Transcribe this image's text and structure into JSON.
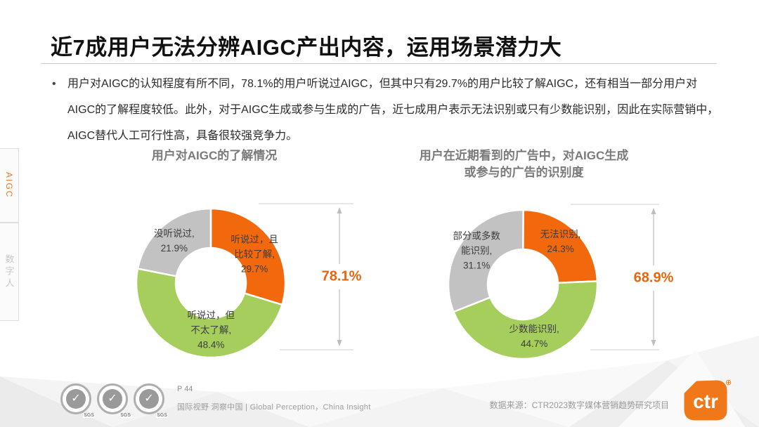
{
  "colors": {
    "accent_orange": "#E8650D",
    "brand_orange": "#F07818",
    "slice_orange": "#F2690D",
    "slice_green": "#A5CE5C",
    "slice_gray": "#C2C2C2"
  },
  "header": {
    "title": "近7成用户无法分辨AIGC产出内容，运用场景潜力大"
  },
  "intro": {
    "bullet": "•",
    "lines": [
      "用户对AIGC的认知程度有所不同，78.1%的用户听说过AIGC，但其中只有29.7%的用户比较了解AIGC，还有相当一部分用户对",
      "AIGC的了解程度较低。此外，对于AIGC生成或参与生成的广告，近七成用户表示无法识别或只有少数能识别，因此在实际营销中，",
      "AIGC替代人工可行性高，具备很较强竞争力。"
    ]
  },
  "sidebar": {
    "tabs": [
      {
        "label": "AIGC",
        "active": true
      },
      {
        "label": "数字人",
        "active": false
      }
    ]
  },
  "chart_data": [
    {
      "type": "pie",
      "title": "用户对AIGC的了解情况",
      "slices": [
        {
          "name": "听说过，且比较了解",
          "percent": 29.7,
          "color": "#F2690D",
          "label_lines": [
            "听说过，且",
            "比较了解,",
            "29.7%"
          ]
        },
        {
          "name": "听说过，但不太了解",
          "percent": 48.4,
          "color": "#A5CE5C",
          "label_lines": [
            "听说过，但",
            "不太了解,",
            "48.4%"
          ]
        },
        {
          "name": "没听说过",
          "percent": 21.9,
          "color": "#C2C2C2",
          "label_lines": [
            "没听说过,",
            "21.9%"
          ]
        }
      ],
      "annotation": {
        "text": "78.1%"
      }
    },
    {
      "type": "pie",
      "title": "用户在近期看到的广告中，对AIGC生成\n或参与的广告的识别度",
      "slices": [
        {
          "name": "无法识别",
          "percent": 24.3,
          "color": "#F2690D",
          "label_lines": [
            "无法识别,",
            "24.3%"
          ]
        },
        {
          "name": "少数能识别",
          "percent": 44.7,
          "color": "#A5CE5C",
          "label_lines": [
            "少数能识别,",
            "44.7%"
          ]
        },
        {
          "name": "部分或多数能识别",
          "percent": 31.1,
          "color": "#C2C2C2",
          "label_lines": [
            "部分或多数",
            "能识别,",
            "31.1%"
          ]
        }
      ],
      "annotation": {
        "text": "68.9%"
      }
    }
  ],
  "footer": {
    "cert_label": "SGS",
    "cert_check": "✓",
    "page_label": "P 44",
    "tagline": "国际视野 洞察中国 | Global Perception，China Insight",
    "data_source": "数据来源：CTR2023数字媒体营销趋势研究项目",
    "brand": "ctr",
    "brand_mark": "⊕"
  }
}
